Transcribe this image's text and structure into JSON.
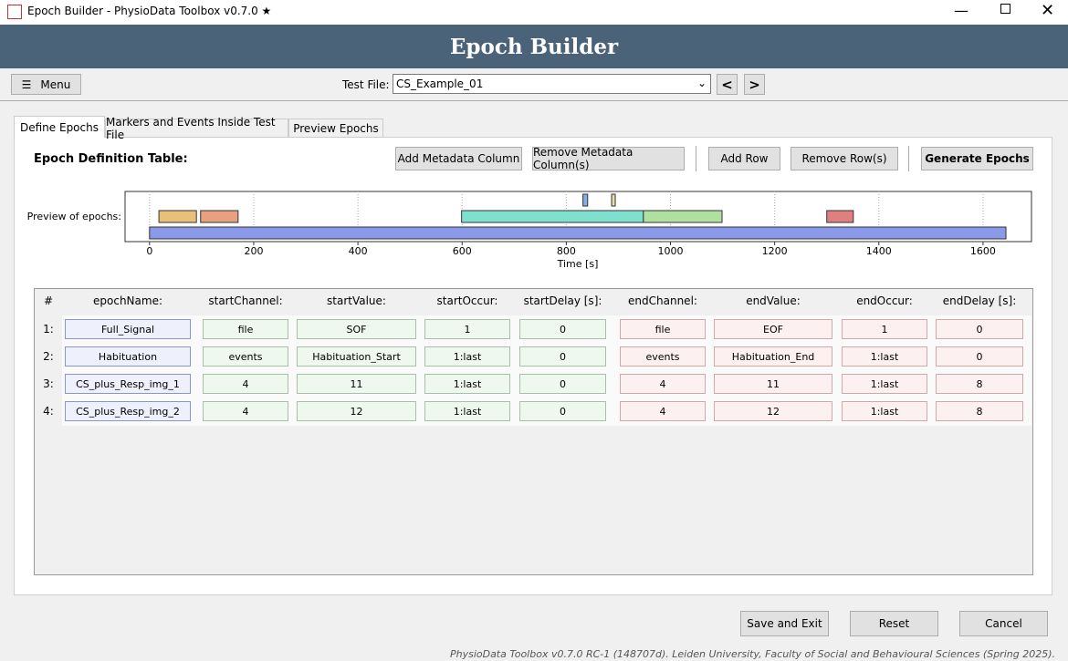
{
  "window": {
    "title": "Epoch Builder - PhysioData Toolbox v0.7.0 ★"
  },
  "header": {
    "title": "Epoch Builder"
  },
  "toolbar": {
    "menu": "Menu",
    "test_file_label": "Test File:",
    "test_file": "CS_Example_01",
    "prev": "<",
    "next": ">"
  },
  "tabs": [
    "Define Epochs",
    "Markers and Events Inside Test File",
    "Preview Epochs"
  ],
  "panel": {
    "title": "Epoch Definition Table:",
    "buttons": [
      "Add Metadata Column",
      "Remove Metadata Column(s)",
      "Add Row",
      "Remove Row(s)",
      "Generate Epochs"
    ]
  },
  "chart_data": {
    "type": "timeline",
    "title": "Preview of epochs:",
    "xlabel": "Time [s]",
    "xlim": [
      -47,
      1693
    ],
    "xticks": [
      0,
      200,
      400,
      600,
      800,
      1000,
      1200,
      1400,
      1600
    ],
    "grid": true,
    "epochs": [
      {
        "start": 0,
        "end": 1644,
        "color": "#8a9ae8"
      },
      {
        "start": 18,
        "end": 90,
        "color": "#e8c07a"
      },
      {
        "start": 98,
        "end": 170,
        "color": "#e8a080"
      },
      {
        "start": 599,
        "end": 948,
        "color": "#80e0d0"
      },
      {
        "start": 948,
        "end": 1099,
        "color": "#b0e0a0"
      },
      {
        "start": 1300,
        "end": 1351,
        "color": "#e07f80"
      },
      {
        "start": 832,
        "end": 841,
        "color": "#80b0e8"
      },
      {
        "start": 887,
        "end": 894,
        "color": "#e8e0a0"
      }
    ]
  },
  "table": {
    "headers": [
      "#",
      "epochName:",
      "startChannel:",
      "startValue:",
      "startOccur:",
      "startDelay [s]:",
      "endChannel:",
      "endValue:",
      "endOccur:",
      "endDelay [s]:"
    ],
    "rows": [
      [
        "1:",
        "Full_Signal",
        "file",
        "SOF",
        "1",
        "0",
        "file",
        "EOF",
        "1",
        "0"
      ],
      [
        "2:",
        "Habituation",
        "events",
        "Habituation_Start",
        "1:last",
        "0",
        "events",
        "Habituation_End",
        "1:last",
        "0"
      ],
      [
        "3:",
        "CS_plus_Resp_img_1",
        "4",
        "11",
        "1:last",
        "0",
        "4",
        "11",
        "1:last",
        "8"
      ],
      [
        "4:",
        "CS_plus_Resp_img_2",
        "4",
        "12",
        "1:last",
        "0",
        "4",
        "12",
        "1:last",
        "8"
      ]
    ]
  },
  "footer_buttons": [
    "Save and Exit",
    "Reset",
    "Cancel"
  ],
  "footer": "PhysioData Toolbox v0.7.0 RC-1 (148707d). Leiden University, Faculty of Social and Behavioural Sciences (Spring 2025)."
}
